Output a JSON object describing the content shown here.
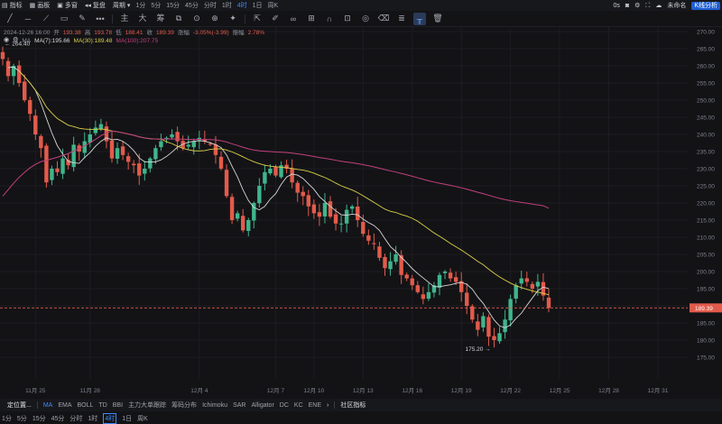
{
  "topbar": {
    "items": [
      {
        "label": "指标",
        "icon": "chart-icon"
      },
      {
        "label": "画板",
        "icon": "grid-icon"
      },
      {
        "label": "多窗",
        "icon": "windows-icon"
      },
      {
        "label": "复盘",
        "icon": "replay-icon"
      },
      {
        "label": "周期",
        "icon": "chevron-down-icon"
      }
    ],
    "timeframes": [
      "1分",
      "5分",
      "15分",
      "45分",
      "分时",
      "1时",
      "4时",
      "1日",
      "周K"
    ],
    "active_timeframe": "4时",
    "icon_glyphs": {
      "dots": "•••",
      "zhu": "主",
      "da": "大",
      "chou": "筹"
    },
    "right": {
      "os_label": "0s",
      "account_label": "未命名",
      "kline_label": "K线分析"
    }
  },
  "legend": {
    "line1": {
      "datetime": "2024-12-26 16:00",
      "open_label": "开",
      "open": "193.38",
      "high_label": "高",
      "high": "193.78",
      "low_label": "低",
      "low": "188.41",
      "close_label": "收",
      "close": "189.39",
      "change_label": "涨幅",
      "change": "-3.05%(-3.99)",
      "amp_label": "振幅",
      "amplitude": "2.78%"
    },
    "line2": {
      "ma_label": "MA",
      "ma7": "MA(7):195.66",
      "ma30": "MA(30):189.48",
      "ma100": "MA(100):207.75"
    }
  },
  "indicators": {
    "first": "定位置...",
    "items": [
      "MA",
      "EMA",
      "BOLL",
      "TD",
      "BBI",
      "主力大单跟踪",
      "筹码分布",
      "Ichimoku",
      "SAR",
      "Alligator",
      "DC",
      "KC",
      "ENE"
    ],
    "active": "MA",
    "community": "社区指标"
  },
  "timeframe_bar": {
    "items": [
      "1分",
      "5分",
      "15分",
      "45分",
      "分时",
      "1时",
      "4时",
      "1日",
      "周K"
    ],
    "active": "4时"
  },
  "chart_data": {
    "type": "candlestick",
    "ylim": [
      170,
      270
    ],
    "y_ticks": [
      175,
      180,
      185,
      190,
      195,
      200,
      205,
      210,
      215,
      220,
      225,
      230,
      235,
      240,
      245,
      250,
      255,
      260,
      265,
      270
    ],
    "x_ticks": [
      {
        "label": "11月 25",
        "bar": 6
      },
      {
        "label": "11月 28",
        "bar": 16
      },
      {
        "label": "12月 4",
        "bar": 36
      },
      {
        "label": "12月 7",
        "bar": 50
      },
      {
        "label": "12月 10",
        "bar": 57
      },
      {
        "label": "12月 13",
        "bar": 66
      },
      {
        "label": "12月 16",
        "bar": 75
      },
      {
        "label": "12月 19",
        "bar": 84
      },
      {
        "label": "12月 22",
        "bar": 93
      },
      {
        "label": "12月 25",
        "bar": 102
      },
      {
        "label": "12月 28",
        "bar": 111
      },
      {
        "label": "12月 31",
        "bar": 120
      }
    ],
    "last_price": "189.39",
    "max_label": "264.40",
    "min_label": "175.20",
    "colors": {
      "up": "#3fb58b",
      "down": "#e25b4b",
      "ma7": "#d8d8d8",
      "ma30": "#d9cf48",
      "ma100": "#c2407e",
      "last_line": "#e25b4b"
    },
    "closes": [
      262,
      257,
      260,
      255,
      250,
      246,
      240,
      236,
      226,
      230,
      229,
      233,
      231,
      237,
      235,
      238,
      240,
      242,
      243,
      238,
      233,
      236,
      234,
      232,
      231,
      228,
      230,
      233,
      236,
      238,
      239,
      240,
      238,
      236,
      237,
      238,
      239,
      238,
      237,
      234,
      230,
      222,
      215,
      217,
      212,
      215,
      220,
      225,
      229,
      230,
      228,
      231,
      230,
      226,
      223,
      222,
      219,
      217,
      216,
      220,
      216,
      214,
      214,
      218,
      219,
      215,
      211,
      209,
      208,
      204,
      201,
      203,
      205,
      199,
      198,
      196,
      194,
      192,
      194,
      196,
      199,
      200,
      198,
      197,
      194,
      190,
      186,
      183,
      187,
      181,
      180,
      182,
      186,
      192,
      196,
      198,
      197,
      195,
      197,
      193,
      189.39
    ]
  }
}
